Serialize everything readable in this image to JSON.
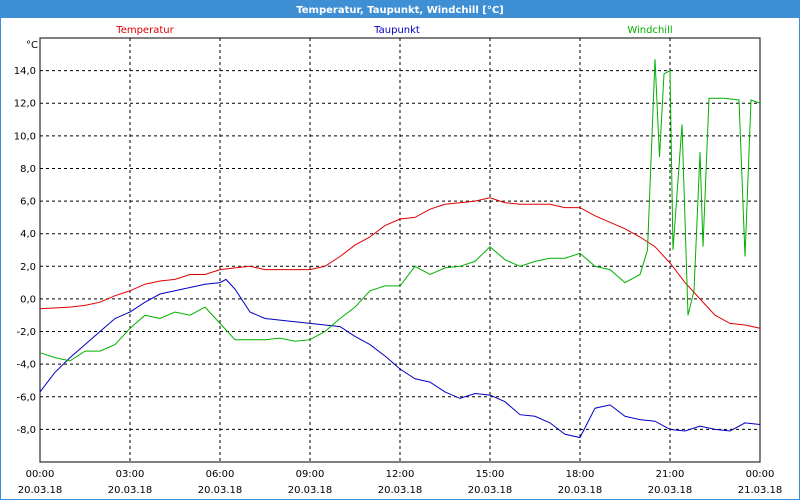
{
  "chart_data": {
    "type": "line",
    "title": "Temperatur, Taupunkt, Windchill [°C]",
    "y_unit": "°C",
    "xlim": [
      0,
      24
    ],
    "xticks": [
      {
        "value": 0,
        "label": [
          "00:00",
          "20.03.18"
        ]
      },
      {
        "value": 3,
        "label": [
          "03:00",
          "20.03.18"
        ]
      },
      {
        "value": 6,
        "label": [
          "06:00",
          "20.03.18"
        ]
      },
      {
        "value": 9,
        "label": [
          "09:00",
          "20.03.18"
        ]
      },
      {
        "value": 12,
        "label": [
          "12:00",
          "20.03.18"
        ]
      },
      {
        "value": 15,
        "label": [
          "15:00",
          "20.03.18"
        ]
      },
      {
        "value": 18,
        "label": [
          "18:00",
          "20.03.18"
        ]
      },
      {
        "value": 21,
        "label": [
          "21:00",
          "20.03.18"
        ]
      },
      {
        "value": 24,
        "label": [
          "00:00",
          "21.03.18"
        ]
      }
    ],
    "ylim": [
      -10,
      16
    ],
    "yticks": [
      {
        "value": -8,
        "label": "-8,0"
      },
      {
        "value": -6,
        "label": "-6,0"
      },
      {
        "value": -4,
        "label": "-4,0"
      },
      {
        "value": -2,
        "label": "-2,0"
      },
      {
        "value": 0,
        "label": "0,0"
      },
      {
        "value": 2,
        "label": "2,0"
      },
      {
        "value": 4,
        "label": "4,0"
      },
      {
        "value": 6,
        "label": "6,0"
      },
      {
        "value": 8,
        "label": "8,0"
      },
      {
        "value": 10,
        "label": "10,0"
      },
      {
        "value": 12,
        "label": "12,0"
      },
      {
        "value": 14,
        "label": "14,0"
      }
    ],
    "grid": true,
    "series": [
      {
        "name": "Temperatur",
        "color": "#e00000",
        "x": [
          0,
          1,
          1.5,
          2,
          2.5,
          3,
          3.5,
          4,
          4.5,
          5,
          5.5,
          6,
          6.5,
          7,
          7.5,
          8,
          8.5,
          9,
          9.5,
          10,
          10.5,
          11,
          11.5,
          12,
          12.5,
          13,
          13.5,
          14,
          14.5,
          15,
          15.5,
          16,
          16.5,
          17,
          17.5,
          18,
          18.5,
          19,
          19.5,
          20,
          20.5,
          21,
          21.5,
          22,
          22.5,
          23,
          23.5,
          24
        ],
        "values": [
          -0.6,
          -0.5,
          -0.4,
          -0.2,
          0.2,
          0.5,
          0.9,
          1.1,
          1.2,
          1.5,
          1.5,
          1.8,
          1.9,
          2.0,
          1.8,
          1.8,
          1.8,
          1.8,
          2.0,
          2.6,
          3.3,
          3.8,
          4.5,
          4.9,
          5.0,
          5.5,
          5.8,
          5.9,
          6.0,
          6.2,
          5.9,
          5.8,
          5.8,
          5.8,
          5.6,
          5.6,
          5.1,
          4.7,
          4.3,
          3.8,
          3.2,
          2.2,
          1.0,
          0.0,
          -1.0,
          -1.5,
          -1.6,
          -1.8
        ]
      },
      {
        "name": "Taupunkt",
        "color": "#0000c0",
        "x": [
          0,
          0.5,
          1,
          1.5,
          2,
          2.5,
          3,
          3.5,
          4,
          4.5,
          5,
          5.5,
          6,
          6.2,
          6.5,
          7,
          7.5,
          8,
          8.5,
          9,
          9.5,
          10,
          10.5,
          11,
          11.5,
          12,
          12.5,
          13,
          13.5,
          14,
          14.5,
          15,
          15.5,
          16,
          16.5,
          17,
          17.5,
          18,
          18.5,
          19,
          19.5,
          20,
          20.5,
          21,
          21.5,
          22,
          22.5,
          23,
          23.5,
          24
        ],
        "values": [
          -5.7,
          -4.5,
          -3.6,
          -2.8,
          -2.0,
          -1.2,
          -0.8,
          -0.2,
          0.3,
          0.5,
          0.7,
          0.9,
          1.0,
          1.2,
          0.6,
          -0.8,
          -1.2,
          -1.3,
          -1.4,
          -1.5,
          -1.6,
          -1.7,
          -2.3,
          -2.8,
          -3.5,
          -4.3,
          -4.9,
          -5.1,
          -5.7,
          -6.1,
          -5.8,
          -5.9,
          -6.3,
          -7.1,
          -7.2,
          -7.6,
          -8.3,
          -8.5,
          -6.7,
          -6.5,
          -7.2,
          -7.4,
          -7.5,
          -8.0,
          -8.1,
          -7.8,
          -8.0,
          -8.1,
          -7.6,
          -7.7
        ]
      },
      {
        "name": "Windchill",
        "color": "#00b000",
        "x": [
          0,
          0.5,
          1,
          1.5,
          2,
          2.5,
          3,
          3.5,
          4,
          4.5,
          5,
          5.5,
          6,
          6.5,
          7,
          7.5,
          8,
          8.5,
          9,
          9.5,
          10,
          10.5,
          11,
          11.5,
          12,
          12.5,
          13,
          13.5,
          14,
          14.5,
          15,
          15.5,
          16,
          16.5,
          17,
          17.5,
          18,
          18.5,
          19,
          19.5,
          20,
          20.25,
          20.5,
          20.65,
          20.8,
          21,
          21.1,
          21.4,
          21.6,
          21.8,
          22,
          22.1,
          22.3,
          22.8,
          23.3,
          23.5,
          23.7,
          24
        ],
        "values": [
          -3.3,
          -3.6,
          -3.8,
          -3.2,
          -3.2,
          -2.8,
          -1.8,
          -1.0,
          -1.2,
          -0.8,
          -1.0,
          -0.5,
          -1.5,
          -2.5,
          -2.5,
          -2.5,
          -2.4,
          -2.6,
          -2.5,
          -2.0,
          -1.2,
          -0.5,
          0.5,
          0.8,
          0.8,
          2.0,
          1.5,
          1.9,
          2.0,
          2.3,
          3.2,
          2.4,
          2.0,
          2.3,
          2.5,
          2.5,
          2.8,
          2.0,
          1.8,
          1.0,
          1.5,
          3.0,
          14.7,
          8.7,
          13.8,
          14.0,
          3.0,
          10.7,
          -1.0,
          0.5,
          9.0,
          3.2,
          12.3,
          12.3,
          12.2,
          2.6,
          12.2,
          12.0
        ]
      }
    ]
  }
}
